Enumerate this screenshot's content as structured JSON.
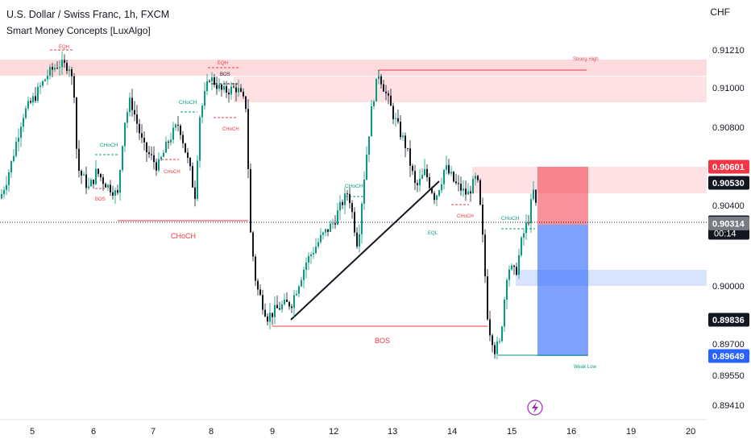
{
  "header": {
    "title": "U.S. Dollar / Swiss Franc, 1h, FXCM",
    "indicator": "Smart Money Concepts [LuxAlgo]",
    "currency": "CHF"
  },
  "chart_data": {
    "type": "candlestick",
    "y_ticks": [
      0.9121,
      0.91,
      0.908,
      0.904,
      0.9,
      0.897,
      0.8955,
      0.8941
    ],
    "y_tick_labels": [
      "0.91210",
      "0.91000",
      "0.90800",
      "0.90400",
      "0.90000",
      "0.89700",
      "0.89550",
      "0.89410"
    ],
    "x_tick_labels": [
      "5",
      "6",
      "7",
      "8",
      "9",
      "12",
      "13",
      "14",
      "15",
      "16",
      "19",
      "20"
    ],
    "price_tags": [
      {
        "label": "0.90601",
        "value": 0.90601,
        "bg": "#f23645",
        "fg": "#ffffff"
      },
      {
        "label": "0.90530",
        "value": 0.9053,
        "bg": "#131722",
        "fg": "#ffffff"
      },
      {
        "label": "0.90320",
        "value": 0.9032,
        "bg": "#131722",
        "fg": "#ffffff",
        "sub": "00:14"
      },
      {
        "label": "0.90314",
        "value": 0.90314,
        "bg": "#787b86",
        "fg": "#ffffff"
      },
      {
        "label": "0.89836",
        "value": 0.89836,
        "bg": "#131722",
        "fg": "#ffffff"
      },
      {
        "label": "0.89649",
        "value": 0.89649,
        "bg": "#2962ff",
        "fg": "#ffffff"
      }
    ],
    "structure_labels": [
      {
        "text": "EQH",
        "color": "#f23645"
      },
      {
        "text": "EQH",
        "color": "#f23645"
      },
      {
        "text": "BOS",
        "color": "#131722"
      },
      {
        "text": "Strong High",
        "color": "#f23645"
      },
      {
        "text": "CHoCH",
        "color": "#089981"
      },
      {
        "text": "CHoCH",
        "color": "#f23645"
      },
      {
        "text": "CHoCH",
        "color": "#089981"
      },
      {
        "text": "CHoCH",
        "color": "#f23645"
      },
      {
        "text": "BOS",
        "color": "#f23645"
      },
      {
        "text": "CHoCH",
        "color": "#f23645"
      },
      {
        "text": "CHoCH",
        "color": "#089981"
      },
      {
        "text": "CHoCH",
        "color": "#f23645"
      },
      {
        "text": "EQL",
        "color": "#089981"
      },
      {
        "text": "CHoCH",
        "color": "#089981"
      },
      {
        "text": "BOS",
        "color": "#f23645"
      },
      {
        "text": "Weak Low",
        "color": "#089981"
      }
    ],
    "colors": {
      "up": "#089981",
      "down": "#131722",
      "bear_zone": "#f23645",
      "bull_zone": "#2962ff"
    }
  }
}
